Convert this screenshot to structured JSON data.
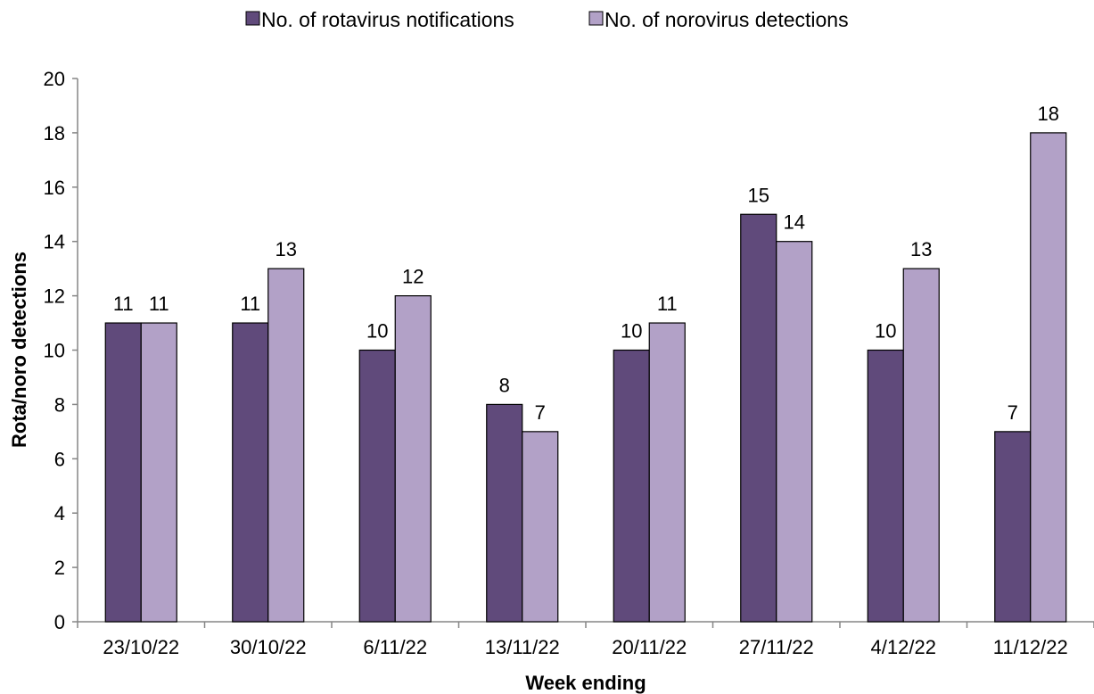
{
  "chart_data": {
    "type": "bar",
    "categories": [
      "23/10/22",
      "30/10/22",
      "6/11/22",
      "13/11/22",
      "20/11/22",
      "27/11/22",
      "4/12/22",
      "11/12/22"
    ],
    "series": [
      {
        "name": "No. of rotavirus notifications",
        "values": [
          11,
          11,
          10,
          8,
          10,
          15,
          10,
          7
        ],
        "color": "#604a7b"
      },
      {
        "name": "No. of norovirus detections",
        "values": [
          11,
          13,
          12,
          7,
          11,
          14,
          13,
          18
        ],
        "color": "#b2a1c7"
      }
    ],
    "title": "",
    "xlabel": "Week ending",
    "ylabel": "Rota/noro detections",
    "ylim": [
      0,
      20
    ],
    "yticks": [
      0,
      2,
      4,
      6,
      8,
      10,
      12,
      14,
      16,
      18,
      20
    ],
    "grid": false,
    "legend_position": "top"
  }
}
